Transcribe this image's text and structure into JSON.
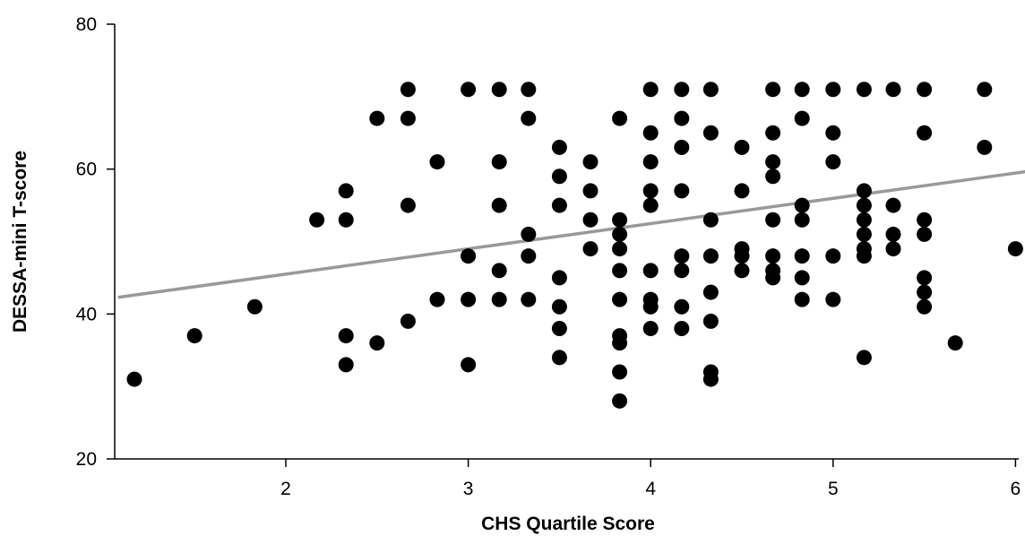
{
  "chart_data": {
    "type": "scatter",
    "title": "",
    "xlabel": "CHS Quartile Score",
    "ylabel": "DESSA-mini T-score",
    "xlim": [
      1.08,
      6.1
    ],
    "ylim": [
      20,
      80
    ],
    "xticks": [
      2,
      3,
      4,
      5,
      6
    ],
    "yticks": [
      20,
      40,
      60,
      80
    ],
    "grid": false,
    "point_color": "#000000",
    "trendline": {
      "color": "#999999",
      "points": [
        [
          1.08,
          42.3
        ],
        [
          6.1,
          59.8
        ]
      ]
    },
    "points": [
      [
        1.17,
        31
      ],
      [
        1.5,
        37
      ],
      [
        1.83,
        41
      ],
      [
        2.17,
        53
      ],
      [
        2.33,
        57
      ],
      [
        2.33,
        53
      ],
      [
        2.33,
        37
      ],
      [
        2.33,
        33
      ],
      [
        2.5,
        67
      ],
      [
        2.5,
        36
      ],
      [
        2.67,
        71
      ],
      [
        2.67,
        67
      ],
      [
        2.67,
        55
      ],
      [
        2.67,
        39
      ],
      [
        2.83,
        61
      ],
      [
        2.83,
        42
      ],
      [
        3.0,
        71
      ],
      [
        3.0,
        48
      ],
      [
        3.0,
        42
      ],
      [
        3.0,
        33
      ],
      [
        3.17,
        71
      ],
      [
        3.17,
        61
      ],
      [
        3.17,
        55
      ],
      [
        3.17,
        46
      ],
      [
        3.17,
        42
      ],
      [
        3.33,
        71
      ],
      [
        3.33,
        67
      ],
      [
        3.33,
        51
      ],
      [
        3.33,
        48
      ],
      [
        3.33,
        42
      ],
      [
        3.5,
        63
      ],
      [
        3.5,
        59
      ],
      [
        3.5,
        55
      ],
      [
        3.5,
        45
      ],
      [
        3.5,
        41
      ],
      [
        3.5,
        38
      ],
      [
        3.5,
        34
      ],
      [
        3.67,
        61
      ],
      [
        3.67,
        57
      ],
      [
        3.67,
        53
      ],
      [
        3.67,
        49
      ],
      [
        3.83,
        67
      ],
      [
        3.83,
        53
      ],
      [
        3.83,
        51
      ],
      [
        3.83,
        49
      ],
      [
        3.83,
        46
      ],
      [
        3.83,
        42
      ],
      [
        3.83,
        37
      ],
      [
        3.83,
        36
      ],
      [
        3.83,
        32
      ],
      [
        3.83,
        28
      ],
      [
        4.0,
        71
      ],
      [
        4.0,
        65
      ],
      [
        4.0,
        61
      ],
      [
        4.0,
        57
      ],
      [
        4.0,
        55
      ],
      [
        4.0,
        46
      ],
      [
        4.0,
        42
      ],
      [
        4.0,
        41
      ],
      [
        4.0,
        38
      ],
      [
        4.17,
        71
      ],
      [
        4.17,
        67
      ],
      [
        4.17,
        63
      ],
      [
        4.17,
        57
      ],
      [
        4.17,
        48
      ],
      [
        4.17,
        46
      ],
      [
        4.17,
        41
      ],
      [
        4.17,
        38
      ],
      [
        4.33,
        71
      ],
      [
        4.33,
        65
      ],
      [
        4.33,
        53
      ],
      [
        4.33,
        48
      ],
      [
        4.33,
        43
      ],
      [
        4.33,
        39
      ],
      [
        4.33,
        32
      ],
      [
        4.33,
        31
      ],
      [
        4.5,
        63
      ],
      [
        4.5,
        57
      ],
      [
        4.5,
        49
      ],
      [
        4.5,
        48
      ],
      [
        4.5,
        46
      ],
      [
        4.67,
        71
      ],
      [
        4.67,
        65
      ],
      [
        4.67,
        61
      ],
      [
        4.67,
        59
      ],
      [
        4.67,
        53
      ],
      [
        4.67,
        48
      ],
      [
        4.67,
        46
      ],
      [
        4.67,
        45
      ],
      [
        4.83,
        71
      ],
      [
        4.83,
        67
      ],
      [
        4.83,
        55
      ],
      [
        4.83,
        53
      ],
      [
        4.83,
        48
      ],
      [
        4.83,
        45
      ],
      [
        4.83,
        42
      ],
      [
        5.0,
        71
      ],
      [
        5.0,
        65
      ],
      [
        5.0,
        61
      ],
      [
        5.0,
        48
      ],
      [
        5.0,
        42
      ],
      [
        5.17,
        71
      ],
      [
        5.17,
        57
      ],
      [
        5.17,
        55
      ],
      [
        5.17,
        53
      ],
      [
        5.17,
        51
      ],
      [
        5.17,
        49
      ],
      [
        5.17,
        48
      ],
      [
        5.17,
        34
      ],
      [
        5.33,
        71
      ],
      [
        5.33,
        55
      ],
      [
        5.33,
        51
      ],
      [
        5.33,
        49
      ],
      [
        5.5,
        71
      ],
      [
        5.5,
        65
      ],
      [
        5.5,
        53
      ],
      [
        5.5,
        51
      ],
      [
        5.5,
        45
      ],
      [
        5.5,
        43
      ],
      [
        5.5,
        41
      ],
      [
        5.67,
        36
      ],
      [
        5.83,
        71
      ],
      [
        5.83,
        63
      ],
      [
        6.0,
        49
      ]
    ]
  }
}
